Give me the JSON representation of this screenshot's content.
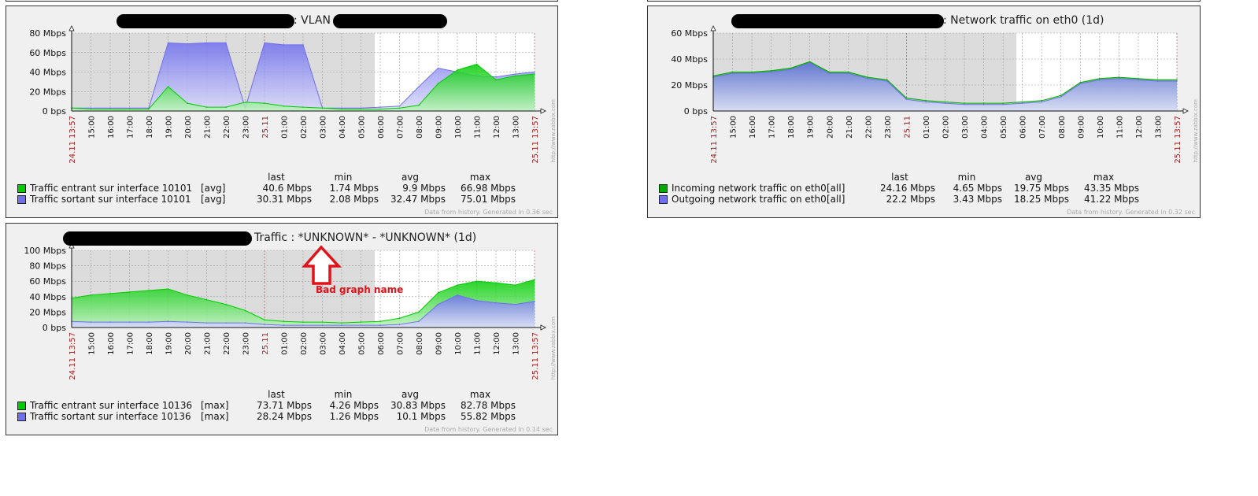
{
  "chart_data": [
    {
      "type": "area",
      "title_visible": ": VLAN",
      "x": [
        "24.11 13:57",
        "15:00",
        "16:00",
        "17:00",
        "18:00",
        "19:00",
        "20:00",
        "21:00",
        "22:00",
        "23:00",
        "25.11",
        "01:00",
        "02:00",
        "03:00",
        "04:00",
        "05:00",
        "06:00",
        "07:00",
        "08:00",
        "09:00",
        "10:00",
        "11:00",
        "12:00",
        "13:00",
        "25.11 13:57"
      ],
      "y_ticks": [
        "0 bps",
        "20 Mbps",
        "40 Mbps",
        "60 Mbps",
        "80 Mbps"
      ],
      "ylim": [
        0,
        80
      ],
      "y_unit": "Mbps",
      "grid": true,
      "legend_position": "bottom",
      "legend_headers": {
        "last": "last",
        "min": "min",
        "avg": "avg",
        "max": "max"
      },
      "series": [
        {
          "name": "Traffic entrant sur interface 10101",
          "func": "[avg]",
          "color": "#00cc00",
          "last": "40.6 Mbps",
          "min": "1.74 Mbps",
          "avg": "9.9 Mbps",
          "max": "66.98 Mbps",
          "values": [
            3,
            2,
            2,
            2,
            2,
            25,
            8,
            4,
            4,
            9,
            8,
            5,
            4,
            3,
            2,
            2,
            2,
            3,
            6,
            28,
            42,
            48,
            32,
            36,
            38
          ]
        },
        {
          "name": "Traffic sortant sur interface 10101",
          "func": "[avg]",
          "color": "#7070ee",
          "last": "30.31 Mbps",
          "min": "2.08 Mbps",
          "avg": "32.47 Mbps",
          "max": "75.01 Mbps",
          "values": [
            3,
            3,
            3,
            3,
            3,
            70,
            69,
            70,
            70,
            3,
            70,
            68,
            68,
            3,
            3,
            3,
            4,
            5,
            25,
            44,
            40,
            36,
            35,
            38,
            40
          ]
        }
      ],
      "footer": "Data from history. Generated in 0.36 sec",
      "watermark": "http://www.zabbix.com"
    },
    {
      "type": "area",
      "title_visible": ": Network traffic on eth0 (1d)",
      "x": [
        "24.11 13:57",
        "15:00",
        "16:00",
        "17:00",
        "18:00",
        "19:00",
        "20:00",
        "21:00",
        "22:00",
        "23:00",
        "25.11",
        "01:00",
        "02:00",
        "03:00",
        "04:00",
        "05:00",
        "06:00",
        "07:00",
        "08:00",
        "09:00",
        "10:00",
        "11:00",
        "12:00",
        "13:00",
        "25.11 13:57"
      ],
      "y_ticks": [
        "0 bps",
        "20 Mbps",
        "40 Mbps",
        "60 Mbps"
      ],
      "ylim": [
        0,
        60
      ],
      "y_unit": "Mbps",
      "grid": true,
      "legend_position": "bottom",
      "legend_headers": {
        "last": "last",
        "min": "min",
        "avg": "avg",
        "max": "max"
      },
      "series": [
        {
          "name": "Incoming network traffic on eth0",
          "func": "[all]",
          "color": "#00aa00",
          "last": "24.16 Mbps",
          "min": "4.65 Mbps",
          "avg": "19.75 Mbps",
          "max": "43.35 Mbps",
          "values": [
            27,
            30,
            30,
            31,
            33,
            38,
            30,
            30,
            26,
            24,
            10,
            8,
            7,
            6,
            6,
            6,
            7,
            8,
            12,
            22,
            25,
            26,
            25,
            24,
            24
          ]
        },
        {
          "name": "Outgoing network traffic on eth0",
          "func": "[all]",
          "color": "#7070ee",
          "last": "22.2 Mbps",
          "min": "3.43 Mbps",
          "avg": "18.25 Mbps",
          "max": "41.22 Mbps",
          "values": [
            26,
            29,
            29,
            30,
            32,
            37,
            29,
            29,
            25,
            23,
            9,
            7,
            6,
            5,
            5,
            5,
            6,
            7,
            11,
            21,
            24,
            25,
            24,
            23,
            23
          ]
        }
      ],
      "footer": "Data from history. Generated in 0.32 sec",
      "watermark": "http://www.zabbix.com"
    },
    {
      "type": "area",
      "title_visible": "Traffic : *UNKNOWN* - *UNKNOWN* (1d)",
      "x": [
        "24.11 13:57",
        "15:00",
        "16:00",
        "17:00",
        "18:00",
        "19:00",
        "20:00",
        "21:00",
        "22:00",
        "23:00",
        "25.11",
        "01:00",
        "02:00",
        "03:00",
        "04:00",
        "05:00",
        "06:00",
        "07:00",
        "08:00",
        "09:00",
        "10:00",
        "11:00",
        "12:00",
        "13:00",
        "25.11 13:57"
      ],
      "y_ticks": [
        "0 bps",
        "20 Mbps",
        "40 Mbps",
        "60 Mbps",
        "80 Mbps",
        "100 Mbps"
      ],
      "ylim": [
        0,
        100
      ],
      "y_unit": "Mbps",
      "grid": true,
      "legend_position": "bottom",
      "legend_headers": {
        "last": "last",
        "min": "min",
        "avg": "avg",
        "max": "max"
      },
      "series": [
        {
          "name": "Traffic entrant sur interface 10136",
          "func": "[max]",
          "color": "#00cc00",
          "last": "73.71 Mbps",
          "min": "4.26 Mbps",
          "avg": "30.83 Mbps",
          "max": "82.78 Mbps",
          "values": [
            38,
            42,
            44,
            46,
            48,
            50,
            42,
            36,
            30,
            22,
            10,
            8,
            7,
            7,
            6,
            7,
            8,
            12,
            20,
            45,
            55,
            60,
            58,
            55,
            62
          ]
        },
        {
          "name": "Traffic sortant sur interface 10136",
          "func": "[max]",
          "color": "#7070ee",
          "last": "28.24 Mbps",
          "min": "1.26 Mbps",
          "avg": "10.1 Mbps",
          "max": "55.82 Mbps",
          "values": [
            8,
            7,
            7,
            7,
            7,
            8,
            7,
            6,
            6,
            6,
            4,
            3,
            3,
            3,
            3,
            3,
            3,
            4,
            8,
            30,
            42,
            35,
            32,
            30,
            34
          ]
        }
      ],
      "footer": "Data from history. Generated in 0.14 sec",
      "watermark": "http://www.zabbix.com",
      "annotation": "Bad graph name"
    }
  ]
}
